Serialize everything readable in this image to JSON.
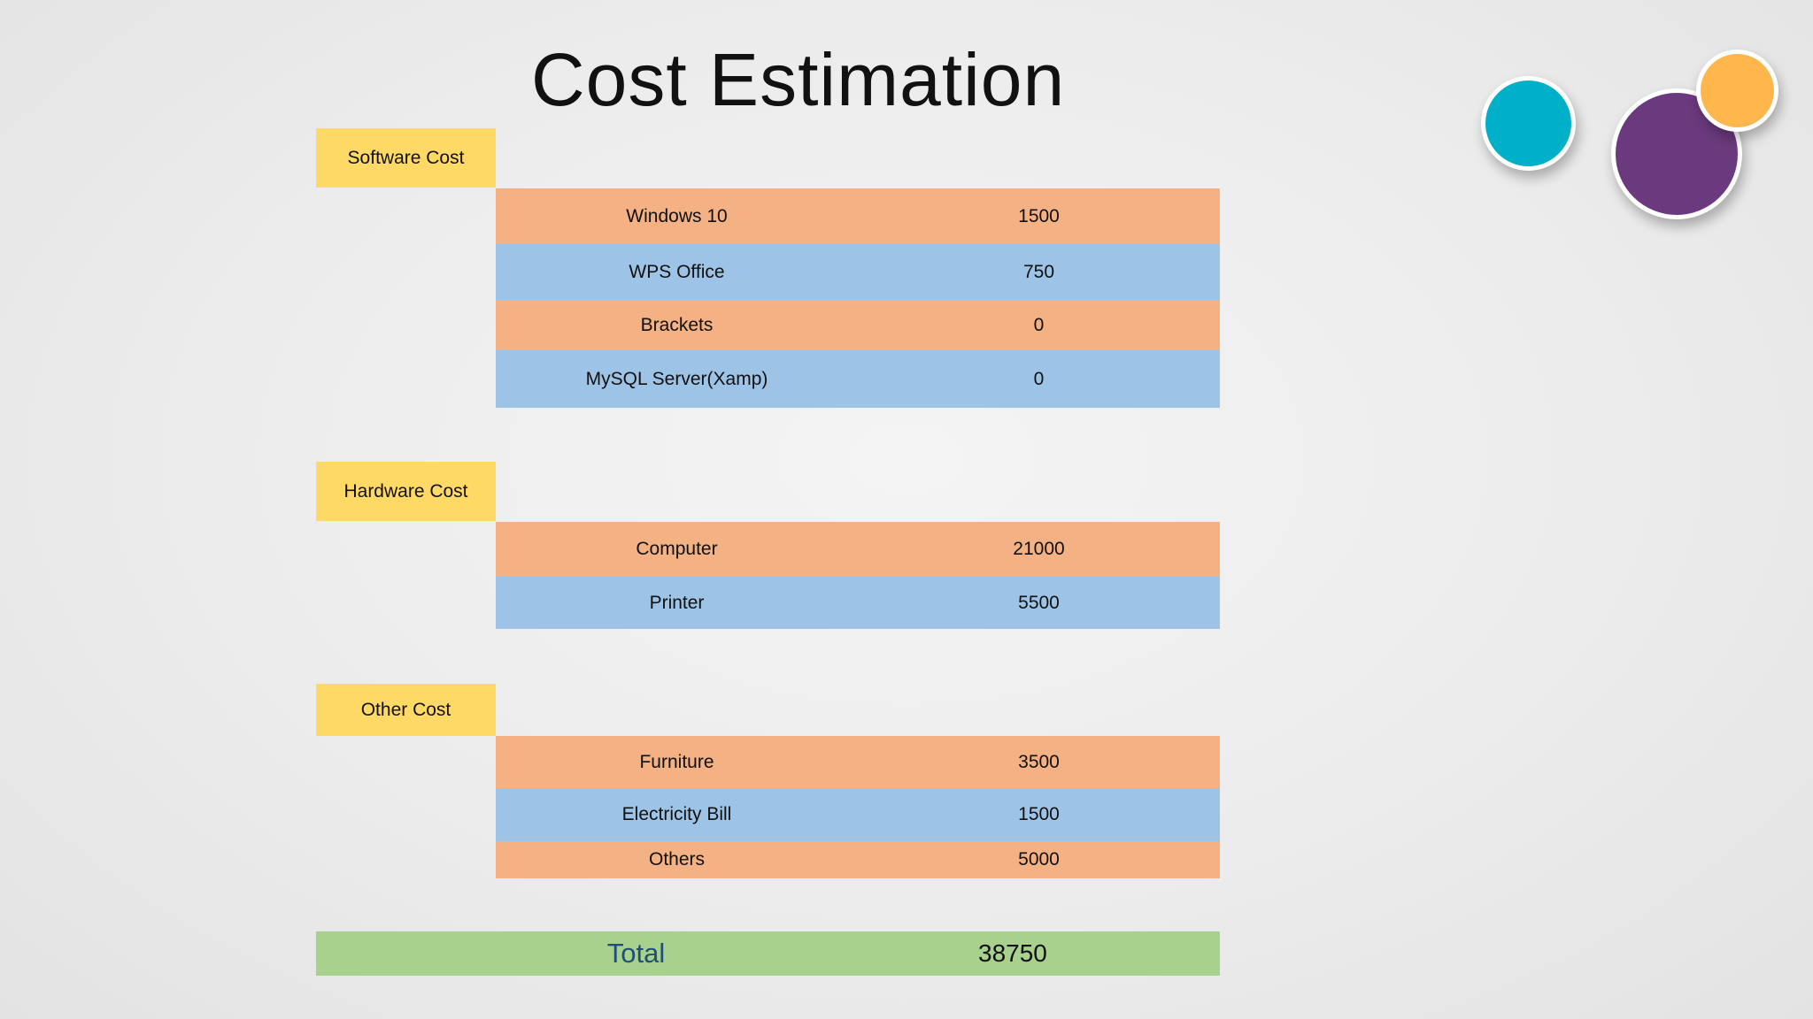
{
  "title": "Cost Estimation",
  "colors": {
    "category": "#ffd966",
    "row_orange": "#f4b183",
    "row_blue": "#9dc3e6",
    "total": "#a9d18e",
    "total_label": "#1f4e79",
    "circle_teal": "#00b0c8",
    "circle_purple": "#6b3a7e",
    "circle_orange": "#ffb74d"
  },
  "sections": [
    {
      "label": "Software Cost",
      "items": [
        {
          "name": "Windows 10",
          "value": "1500"
        },
        {
          "name": "WPS Office",
          "value": "750"
        },
        {
          "name": "Brackets",
          "value": "0"
        },
        {
          "name": "MySQL Server(Xamp)",
          "value": "0"
        }
      ]
    },
    {
      "label": "Hardware Cost",
      "items": [
        {
          "name": "Computer",
          "value": "21000"
        },
        {
          "name": "Printer",
          "value": "5500"
        }
      ]
    },
    {
      "label": "Other Cost",
      "items": [
        {
          "name": "Furniture",
          "value": "3500"
        },
        {
          "name": "Electricity Bill",
          "value": "1500"
        },
        {
          "name": "Others",
          "value": "5000"
        }
      ]
    }
  ],
  "total": {
    "label": "Total",
    "value": "38750"
  }
}
